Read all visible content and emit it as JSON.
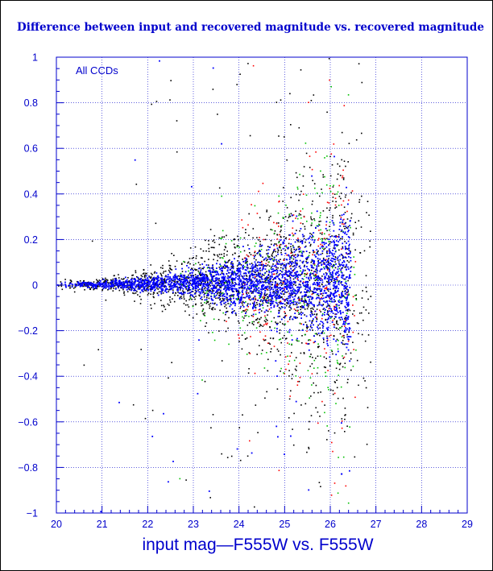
{
  "chart_data": {
    "type": "scatter",
    "title": "Difference between input and recovered magnitude vs. recovered magnitude",
    "xlabel": "input mag—F555W vs. F555W",
    "ylabel": "",
    "annotation": "All CCDs",
    "xlim": [
      20,
      29
    ],
    "ylim": [
      -1,
      1
    ],
    "x_ticks": [
      20,
      21,
      22,
      23,
      24,
      25,
      26,
      27,
      28,
      29
    ],
    "y_ticks": [
      -1,
      -0.8,
      -0.6,
      -0.4,
      -0.2,
      0,
      0.2,
      0.4,
      0.6,
      0.8,
      1
    ],
    "y_tick_labels": [
      "−1",
      "−0.8",
      "−0.6",
      "−0.4",
      "−0.2",
      "0",
      "0.2",
      "0.4",
      "0.6",
      "0.8",
      "1"
    ],
    "grid": true,
    "series": [
      {
        "color": "#000000",
        "count": 1900,
        "x_range": [
          20,
          26.4
        ],
        "tail": [
          26.4,
          26.9
        ],
        "sigma_min": 0.01,
        "sigma_max": 0.3,
        "outlier_fraction": 0.06
      },
      {
        "color": "#ff0000",
        "count": 260,
        "x_range": [
          23.5,
          26.4
        ],
        "tail": [
          26.4,
          26.6
        ],
        "sigma_min": 0.02,
        "sigma_max": 0.35,
        "outlier_fraction": 0.05
      },
      {
        "color": "#00c000",
        "count": 320,
        "x_range": [
          22.5,
          26.4
        ],
        "tail": [
          26.4,
          26.6
        ],
        "sigma_min": 0.02,
        "sigma_max": 0.35,
        "outlier_fraction": 0.05
      },
      {
        "color": "#0000ff",
        "count": 2400,
        "x_range": [
          20,
          26.35
        ],
        "tail": [
          26.35,
          26.45
        ],
        "sigma_min": 0.006,
        "sigma_max": 0.14,
        "outlier_fraction": 0.02
      }
    ],
    "colors": {
      "background": "#000000",
      "plot_background": "#ffffff",
      "axis": "#0000cc",
      "grid": "#0000cc",
      "title": "#0000cc",
      "text": "#0000cc"
    }
  }
}
